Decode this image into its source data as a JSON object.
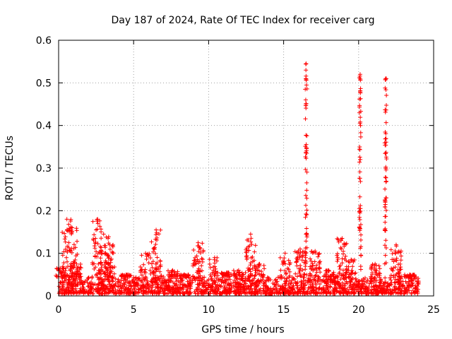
{
  "chart_data": {
    "type": "scatter",
    "title": "Day 187 of 2024, Rate Of TEC Index for receiver carg",
    "xlabel": "GPS time / hours",
    "ylabel": "ROTI / TECUs",
    "xlim": [
      0,
      25
    ],
    "ylim": [
      0,
      0.6
    ],
    "xticks": [
      0,
      5,
      10,
      15,
      20,
      25
    ],
    "yticks": [
      0,
      0.1,
      0.2,
      0.3,
      0.4,
      0.5,
      0.6
    ],
    "xtick_labels": [
      "0",
      "5",
      "10",
      "15",
      "20",
      "25"
    ],
    "ytick_labels": [
      "0",
      "0.1",
      "0.2",
      "0.3",
      "0.4",
      "0.5",
      "0.6"
    ],
    "grid": true,
    "marker": "+",
    "color": "#ff0000",
    "baseline": {
      "x_start": 0,
      "x_end": 24,
      "min": 0.005,
      "max": 0.045
    },
    "bursts": [
      {
        "x": 0.1,
        "peak": 0.065
      },
      {
        "x": 0.55,
        "peak": 0.18
      },
      {
        "x": 0.9,
        "peak": 0.16
      },
      {
        "x": 1.2,
        "peak": 0.075
      },
      {
        "x": 2.6,
        "peak": 0.18
      },
      {
        "x": 3.0,
        "peak": 0.145
      },
      {
        "x": 3.4,
        "peak": 0.12
      },
      {
        "x": 4.5,
        "peak": 0.05
      },
      {
        "x": 5.8,
        "peak": 0.1
      },
      {
        "x": 6.5,
        "peak": 0.155
      },
      {
        "x": 7.6,
        "peak": 0.06
      },
      {
        "x": 8.4,
        "peak": 0.05
      },
      {
        "x": 9.3,
        "peak": 0.125
      },
      {
        "x": 10.4,
        "peak": 0.09
      },
      {
        "x": 11.2,
        "peak": 0.055
      },
      {
        "x": 12.0,
        "peak": 0.06
      },
      {
        "x": 12.8,
        "peak": 0.145
      },
      {
        "x": 13.4,
        "peak": 0.075
      },
      {
        "x": 15.1,
        "peak": 0.1
      },
      {
        "x": 16.1,
        "peak": 0.11
      },
      {
        "x": 16.5,
        "peak": 0.545
      },
      {
        "x": 17.1,
        "peak": 0.105
      },
      {
        "x": 18.0,
        "peak": 0.06
      },
      {
        "x": 18.9,
        "peak": 0.135
      },
      {
        "x": 19.5,
        "peak": 0.085
      },
      {
        "x": 20.1,
        "peak": 0.52
      },
      {
        "x": 21.1,
        "peak": 0.075
      },
      {
        "x": 21.8,
        "peak": 0.51
      },
      {
        "x": 22.5,
        "peak": 0.12
      },
      {
        "x": 23.4,
        "peak": 0.05
      }
    ]
  }
}
